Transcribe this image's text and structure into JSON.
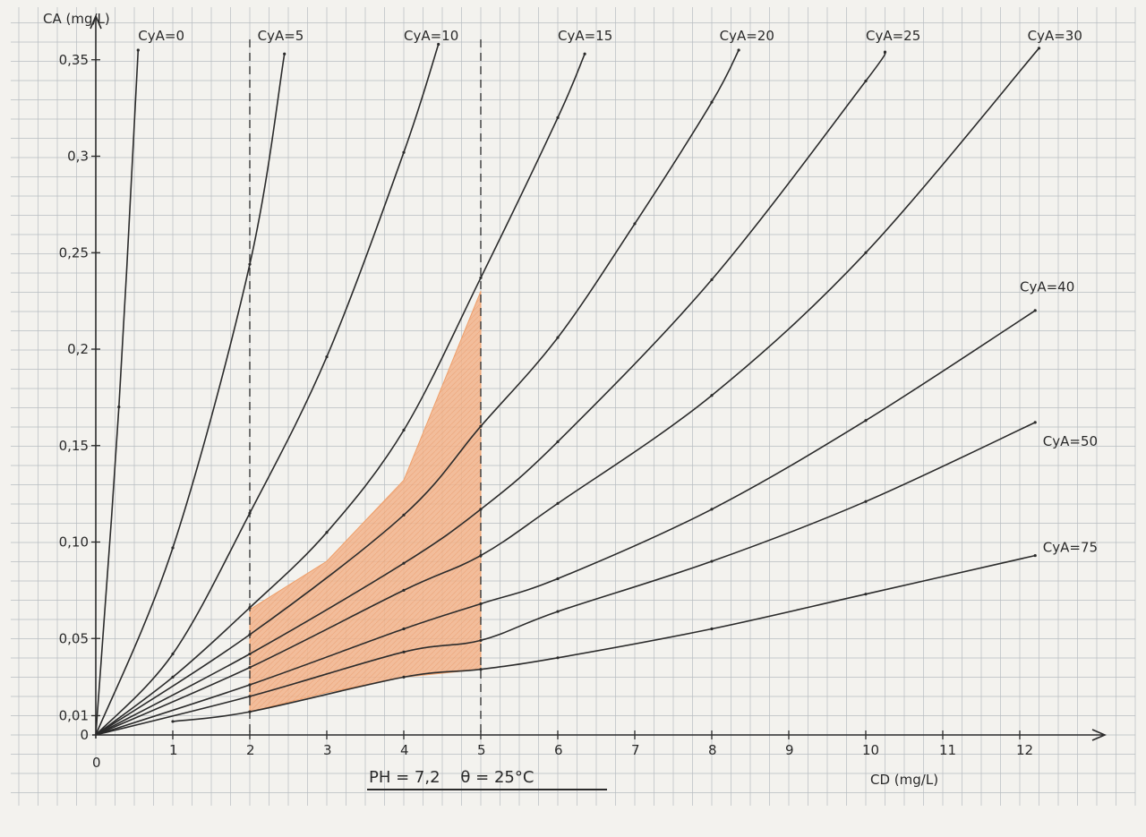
{
  "chart_data": {
    "type": "line",
    "title": "",
    "xlabel": "CD (mg/L)",
    "ylabel": "CA (mg/L)",
    "footer": "PH = 7,2    θ = 25°C",
    "xlim": [
      0,
      12.6
    ],
    "ylim": [
      0,
      0.37
    ],
    "xticks": [
      0,
      1,
      2,
      3,
      4,
      5,
      6,
      7,
      8,
      9,
      10,
      11,
      12
    ],
    "xtick_labels": [
      "0",
      "1",
      "2",
      "3",
      "4",
      "5",
      "6",
      "7",
      "8",
      "9",
      "10",
      "11",
      "12"
    ],
    "yticks": [
      0,
      0.01,
      0.05,
      0.1,
      0.15,
      0.2,
      0.25,
      0.3,
      0.35
    ],
    "ytick_labels": [
      "0",
      "0,01",
      "0,05",
      "0,10",
      "0,15",
      "0,2",
      "0,25",
      "0,3",
      "0,35"
    ],
    "grid": true,
    "reference_lines_x": [
      2,
      5
    ],
    "shaded_region": [
      [
        2,
        0.065
      ],
      [
        3,
        0.09
      ],
      [
        4,
        0.132
      ],
      [
        5,
        0.23
      ],
      [
        5,
        0.034
      ],
      [
        4,
        0.03
      ],
      [
        3,
        0.022
      ],
      [
        2,
        0.012
      ]
    ],
    "colors": {
      "curves": "#2b2b2b",
      "grid": "#b7bcc0",
      "shading": "#ef9f6a",
      "background": "#f3f2ee"
    },
    "series": [
      {
        "name": "CyA=0",
        "label_at": [
          0.55,
          0.36
        ],
        "points": [
          [
            0,
            0
          ],
          [
            0.3,
            0.17
          ],
          [
            0.55,
            0.355
          ]
        ]
      },
      {
        "name": "CyA=5",
        "label_at": [
          2.1,
          0.36
        ],
        "points": [
          [
            0,
            0
          ],
          [
            1,
            0.097
          ],
          [
            2,
            0.244
          ],
          [
            2.45,
            0.353
          ]
        ]
      },
      {
        "name": "CyA=10",
        "label_at": [
          4.0,
          0.36
        ],
        "points": [
          [
            0,
            0
          ],
          [
            1,
            0.042
          ],
          [
            2,
            0.115
          ],
          [
            3,
            0.196
          ],
          [
            4,
            0.302
          ],
          [
            4.45,
            0.358
          ]
        ]
      },
      {
        "name": "CyA=15",
        "label_at": [
          6.0,
          0.36
        ],
        "points": [
          [
            0,
            0
          ],
          [
            1,
            0.03
          ],
          [
            2,
            0.066
          ],
          [
            3,
            0.105
          ],
          [
            4,
            0.158
          ],
          [
            5,
            0.237
          ],
          [
            6,
            0.32
          ],
          [
            6.35,
            0.353
          ]
        ]
      },
      {
        "name": "CyA=20",
        "label_at": [
          8.1,
          0.36
        ],
        "points": [
          [
            0,
            0
          ],
          [
            2,
            0.052
          ],
          [
            4,
            0.114
          ],
          [
            5,
            0.16
          ],
          [
            6,
            0.206
          ],
          [
            7,
            0.265
          ],
          [
            8,
            0.328
          ],
          [
            8.35,
            0.355
          ]
        ]
      },
      {
        "name": "CyA=25",
        "label_at": [
          10.0,
          0.36
        ],
        "points": [
          [
            0,
            0
          ],
          [
            2,
            0.042
          ],
          [
            4,
            0.089
          ],
          [
            5,
            0.117
          ],
          [
            6,
            0.152
          ],
          [
            8,
            0.236
          ],
          [
            10,
            0.339
          ],
          [
            10.25,
            0.354
          ]
        ]
      },
      {
        "name": "CyA=30",
        "label_at": [
          12.1,
          0.36
        ],
        "points": [
          [
            0,
            0
          ],
          [
            2,
            0.035
          ],
          [
            4,
            0.075
          ],
          [
            5,
            0.093
          ],
          [
            6,
            0.12
          ],
          [
            8,
            0.176
          ],
          [
            10,
            0.25
          ],
          [
            12.25,
            0.356
          ]
        ]
      },
      {
        "name": "CyA=40",
        "label_at": [
          12.0,
          0.23
        ],
        "points": [
          [
            0,
            0
          ],
          [
            2,
            0.026
          ],
          [
            4,
            0.055
          ],
          [
            5,
            0.068
          ],
          [
            6,
            0.081
          ],
          [
            8,
            0.117
          ],
          [
            10,
            0.163
          ],
          [
            12.2,
            0.22
          ]
        ]
      },
      {
        "name": "CyA=50",
        "label_at": [
          12.3,
          0.15
        ],
        "points": [
          [
            0,
            0
          ],
          [
            2,
            0.02
          ],
          [
            4,
            0.043
          ],
          [
            5,
            0.049
          ],
          [
            6,
            0.064
          ],
          [
            8,
            0.09
          ],
          [
            10,
            0.121
          ],
          [
            12.2,
            0.162
          ]
        ]
      },
      {
        "name": "CyA=75",
        "label_at": [
          12.3,
          0.095
        ],
        "points": [
          [
            1,
            0.007
          ],
          [
            2,
            0.012
          ],
          [
            4,
            0.03
          ],
          [
            5,
            0.034
          ],
          [
            6,
            0.04
          ],
          [
            8,
            0.055
          ],
          [
            10,
            0.073
          ],
          [
            12.2,
            0.093
          ]
        ]
      }
    ]
  }
}
